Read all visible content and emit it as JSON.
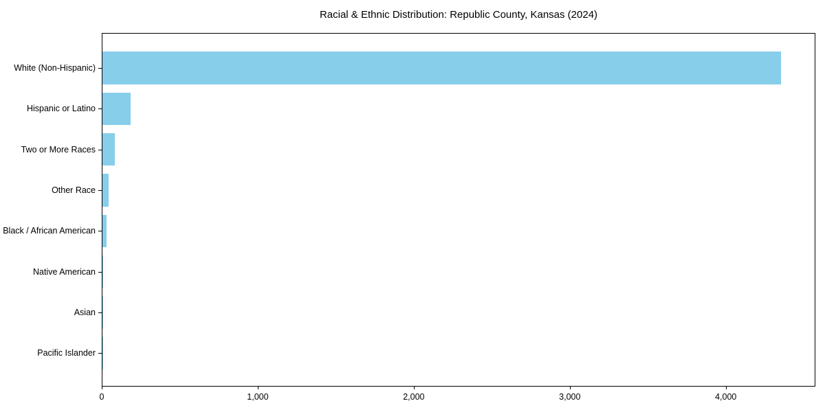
{
  "chart_data": {
    "type": "bar",
    "orientation": "horizontal",
    "title": "Racial & Ethnic Distribution: Republic County, Kansas (2024)",
    "categories": [
      "White (Non-Hispanic)",
      "Hispanic or Latino",
      "Two or More Races",
      "Other Race",
      "Black / African American",
      "Native American",
      "Asian",
      "Pacific Islander"
    ],
    "values": [
      4350,
      180,
      80,
      40,
      25,
      3,
      2,
      1
    ],
    "xlabel": "",
    "ylabel": "",
    "xlim": [
      0,
      4574
    ],
    "xticks": [
      0,
      1000,
      2000,
      3000,
      4000
    ],
    "xtick_labels": [
      "0",
      "1,000",
      "2,000",
      "3,000",
      "4,000"
    ],
    "bar_color": "#87CEEB",
    "text_color": "#000000",
    "background": "#FFFFFF",
    "grid": false,
    "legend": "none"
  }
}
